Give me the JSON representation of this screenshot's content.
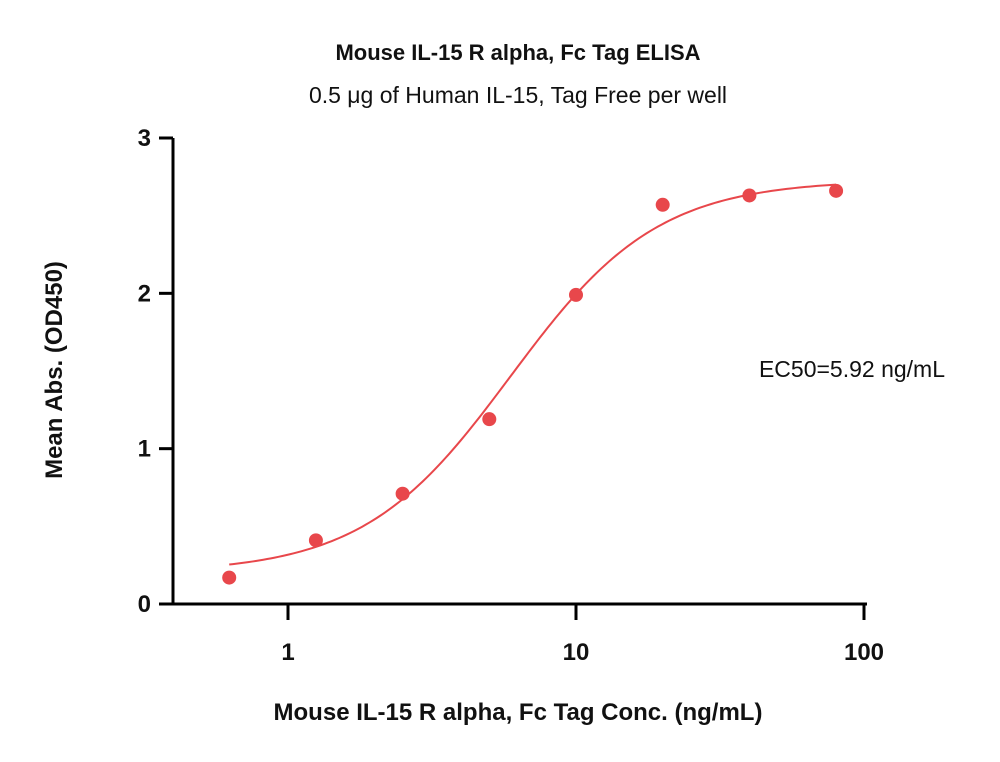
{
  "chart_data": {
    "type": "scatter",
    "title": "Mouse IL-15 R alpha, Fc Tag ELISA",
    "subtitle": "0.5 μg of Human IL-15, Tag Free per well",
    "xlabel": "Mouse IL-15 R alpha, Fc Tag Conc. (ng/mL)",
    "ylabel": "Mean Abs. (OD450)",
    "x_scale": "log",
    "xlim": [
      0.4,
      110
    ],
    "ylim": [
      0,
      3
    ],
    "x_ticks": [
      1,
      10,
      100
    ],
    "x_tick_labels": [
      "1",
      "10",
      "100"
    ],
    "y_ticks": [
      0,
      1,
      2,
      3
    ],
    "y_tick_labels": [
      "0",
      "1",
      "2",
      "3"
    ],
    "grid": false,
    "color": "#e8474b",
    "points": [
      {
        "x": 0.625,
        "y": 0.17
      },
      {
        "x": 1.25,
        "y": 0.41
      },
      {
        "x": 2.5,
        "y": 0.71
      },
      {
        "x": 5,
        "y": 1.19
      },
      {
        "x": 10,
        "y": 1.99
      },
      {
        "x": 20,
        "y": 2.57
      },
      {
        "x": 40,
        "y": 2.63
      },
      {
        "x": 80,
        "y": 2.66
      }
    ],
    "fit": {
      "model": "4PL",
      "bottom": 0.2,
      "top": 2.73,
      "ec50": 5.92,
      "hill": 1.7,
      "x_range": [
        0.625,
        80
      ]
    },
    "annotation": "EC50=5.92 ng/mL"
  }
}
